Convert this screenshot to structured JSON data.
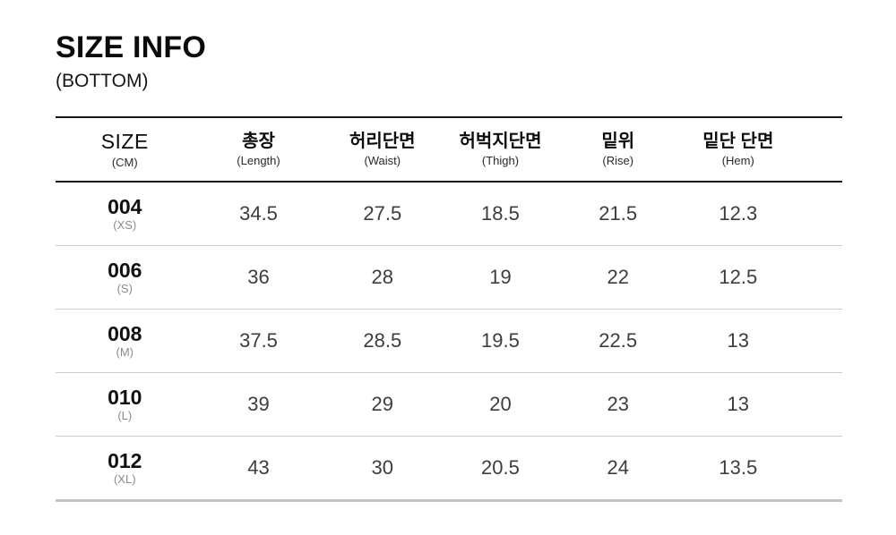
{
  "header": {
    "title": "SIZE INFO",
    "subtitle": "(BOTTOM)"
  },
  "chart_data": {
    "type": "table",
    "title": "SIZE INFO (BOTTOM)",
    "unit": "CM",
    "columns": [
      {
        "label": "SIZE",
        "sublabel": "(CM)"
      },
      {
        "label": "총장",
        "sublabel": "(Length)"
      },
      {
        "label": "허리단면",
        "sublabel": "(Waist)"
      },
      {
        "label": "허벅지단면",
        "sublabel": "(Thigh)"
      },
      {
        "label": "밑위",
        "sublabel": "(Rise)"
      },
      {
        "label": "밑단 단면",
        "sublabel": "(Hem)"
      }
    ],
    "rows": [
      {
        "size": "004",
        "size_label": "(XS)",
        "values": [
          "34.5",
          "27.5",
          "18.5",
          "21.5",
          "12.3"
        ]
      },
      {
        "size": "006",
        "size_label": "(S)",
        "values": [
          "36",
          "28",
          "19",
          "22",
          "12.5"
        ]
      },
      {
        "size": "008",
        "size_label": "(M)",
        "values": [
          "37.5",
          "28.5",
          "19.5",
          "22.5",
          "13"
        ]
      },
      {
        "size": "010",
        "size_label": "(L)",
        "values": [
          "39",
          "29",
          "20",
          "23",
          "13"
        ]
      },
      {
        "size": "012",
        "size_label": "(XL)",
        "values": [
          "43",
          "30",
          "20.5",
          "24",
          "13.5"
        ]
      }
    ]
  },
  "colors": {
    "background": "#ffffff",
    "text_primary": "#0b0b0b",
    "text_value": "#3d3d3d",
    "text_muted": "#8a8a8a",
    "border_dark": "#161616",
    "border_light": "#cccccc",
    "border_bottom": "#c3c3c3"
  }
}
